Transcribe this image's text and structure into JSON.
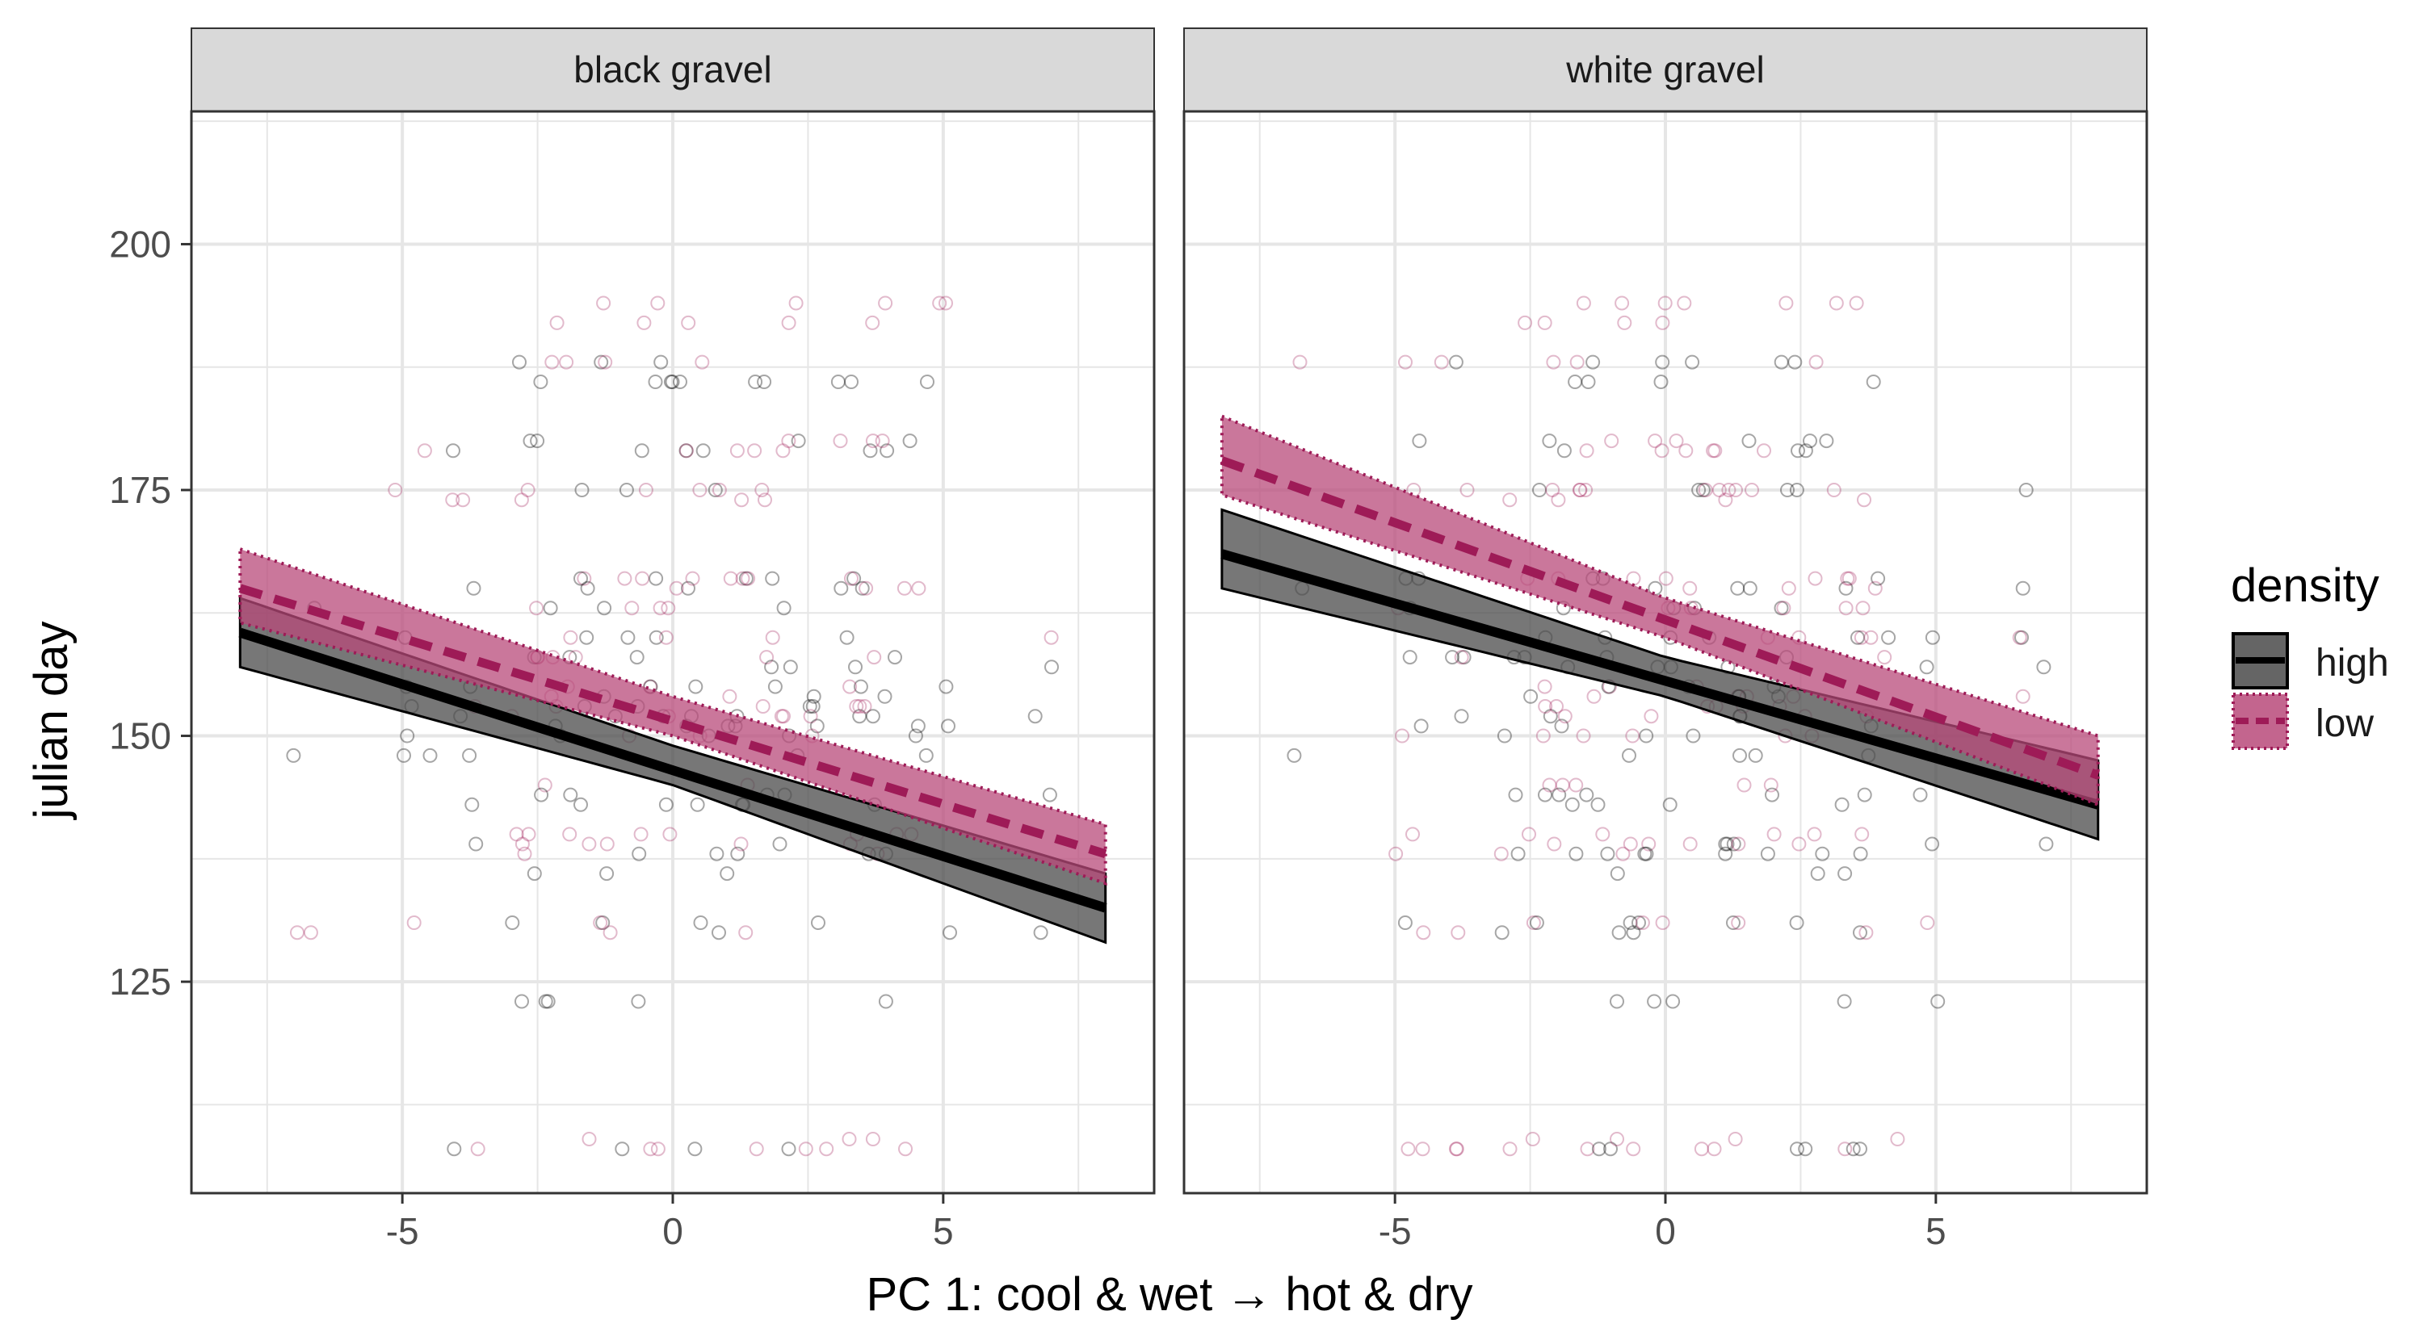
{
  "chart_data": {
    "type": "scatter",
    "xlabel": "PC 1: cool & wet → hot & dry",
    "ylabel": "julian day",
    "xlim": [
      -8.9,
      8.9
    ],
    "ylim": [
      103.5,
      213.5
    ],
    "x_ticks": [
      -5,
      0,
      5
    ],
    "x_tick_labels": [
      "-5",
      "0",
      "5"
    ],
    "y_ticks": [
      125,
      150,
      175,
      200
    ],
    "y_tick_labels": [
      "125",
      "150",
      "175",
      "200"
    ],
    "grid": true,
    "legend": {
      "title": "density",
      "placement": "right",
      "entries": [
        {
          "label": "high",
          "color": "#000000",
          "fill": "#4a4a4a",
          "linetype": "solid"
        },
        {
          "label": "low",
          "color": "#9e1b57",
          "fill": "#b84a7a",
          "linetype": "dashed"
        }
      ]
    },
    "colors": {
      "high": "#000000",
      "low": "#9e1b57",
      "strip_bg": "#d9d9d9",
      "grid": "#e6e6e6"
    },
    "panels": [
      {
        "strip": "black gravel",
        "series": [
          {
            "name": "high",
            "line": [
              [
                -8,
                160.5
              ],
              [
                8,
                132.5
              ]
            ],
            "ci_lower": [
              [
                -8,
                157
              ],
              [
                0,
                145
              ],
              [
                8,
                129
              ]
            ],
            "ci_upper": [
              [
                -8,
                164
              ],
              [
                0,
                149
              ],
              [
                8,
                136
              ]
            ]
          },
          {
            "name": "low",
            "line": [
              [
                -8,
                165
              ],
              [
                8,
                138
              ]
            ],
            "ci_lower": [
              [
                -8,
                161.5
              ],
              [
                0,
                150
              ],
              [
                8,
                135
              ]
            ],
            "ci_upper": [
              [
                -8,
                169
              ],
              [
                0,
                154
              ],
              [
                8,
                141
              ]
            ]
          }
        ]
      },
      {
        "strip": "white gravel",
        "series": [
          {
            "name": "high",
            "line": [
              [
                -8.2,
                168.5
              ],
              [
                8,
                143
              ]
            ],
            "ci_lower": [
              [
                -8.2,
                165
              ],
              [
                0,
                154
              ],
              [
                8,
                139.5
              ]
            ],
            "ci_upper": [
              [
                -8.2,
                173
              ],
              [
                0,
                158
              ],
              [
                8,
                147.5
              ]
            ]
          },
          {
            "name": "low",
            "line": [
              [
                -8.2,
                178
              ],
              [
                8,
                146
              ]
            ],
            "ci_lower": [
              [
                -8.2,
                174.5
              ],
              [
                0,
                160
              ],
              [
                8,
                143
              ]
            ],
            "ci_upper": [
              [
                -8.2,
                182.5
              ],
              [
                0,
                164
              ],
              [
                8,
                150
              ]
            ]
          }
        ]
      }
    ],
    "point_x_values": [
      -6.8,
      -4.9,
      -4.7,
      -3.9,
      -3.7,
      -2.8,
      -2.6,
      -2.5,
      -2.3,
      -2.1,
      -1.9,
      -1.7,
      -1.5,
      -1.3,
      -1.1,
      -0.9,
      -0.7,
      -0.5,
      -0.3,
      -0.1,
      0.1,
      0.3,
      0.6,
      0.9,
      1.1,
      1.3,
      1.5,
      1.7,
      1.9,
      2.1,
      2.3,
      2.6,
      2.8,
      3.2,
      3.4,
      3.5,
      3.7,
      3.9,
      4.3,
      4.9,
      6.8
    ],
    "point_y_values_high": [
      108,
      123,
      130,
      131,
      136,
      138,
      139,
      143,
      144,
      148,
      150,
      151,
      152,
      153,
      154,
      155,
      157,
      158,
      160,
      163,
      165,
      166,
      175,
      179,
      180,
      186,
      188
    ],
    "point_y_values_low": [
      108,
      109,
      130,
      131,
      138,
      139,
      140,
      145,
      150,
      152,
      153,
      154,
      155,
      158,
      160,
      163,
      165,
      166,
      174,
      175,
      179,
      180,
      188,
      192,
      194
    ]
  }
}
